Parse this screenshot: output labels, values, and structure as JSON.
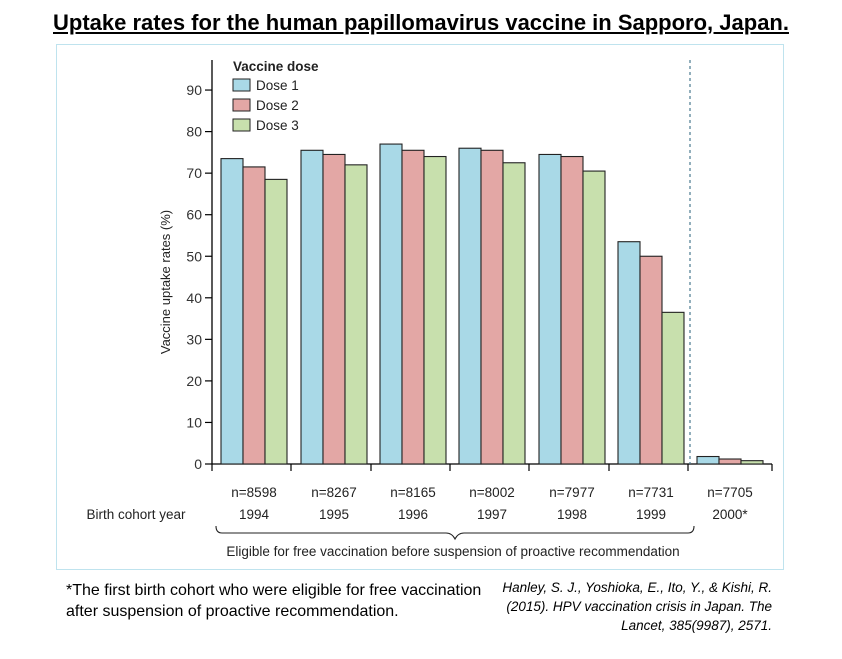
{
  "title": "Uptake rates for the human papillomavirus vaccine in Sapporo, Japan.",
  "footnote": "*The first birth cohort who were eligible for free vaccination after suspension of proactive recommendation.",
  "citation": "Hanley, S. J., Yoshioka, E., Ito, Y., & Kishi, R. (2015). HPV vaccination crisis in Japan. The Lancet, 385(9987), 2571.",
  "chart_data": {
    "type": "bar",
    "title": "",
    "xlabel": "Birth cohort year",
    "ylabel": "Vaccine uptake rates (%)",
    "ylim": [
      0,
      95
    ],
    "yticks": [
      0,
      10,
      20,
      30,
      40,
      50,
      60,
      70,
      80,
      90
    ],
    "legend_title": "Vaccine dose",
    "legend_position": "top-left",
    "grid": false,
    "categories": [
      "1994",
      "1995",
      "1996",
      "1997",
      "1998",
      "1999",
      "2000*"
    ],
    "sample_sizes": [
      "n=8598",
      "n=8267",
      "n=8165",
      "n=8002",
      "n=7977",
      "n=7731",
      "n=7705"
    ],
    "series": [
      {
        "name": "Dose 1",
        "color": "#a9d9e7",
        "values": [
          73.5,
          75.5,
          77.0,
          76.0,
          74.5,
          53.5,
          1.8
        ]
      },
      {
        "name": "Dose 2",
        "color": "#e3a7a5",
        "values": [
          71.5,
          74.5,
          75.5,
          75.5,
          74.0,
          50.0,
          1.2
        ]
      },
      {
        "name": "Dose 3",
        "color": "#c8e0ad",
        "values": [
          68.5,
          72.0,
          74.0,
          72.5,
          70.5,
          36.5,
          0.8
        ]
      }
    ],
    "bracket_label": "Eligible for free vaccination before suspension of proactive recommendation"
  }
}
